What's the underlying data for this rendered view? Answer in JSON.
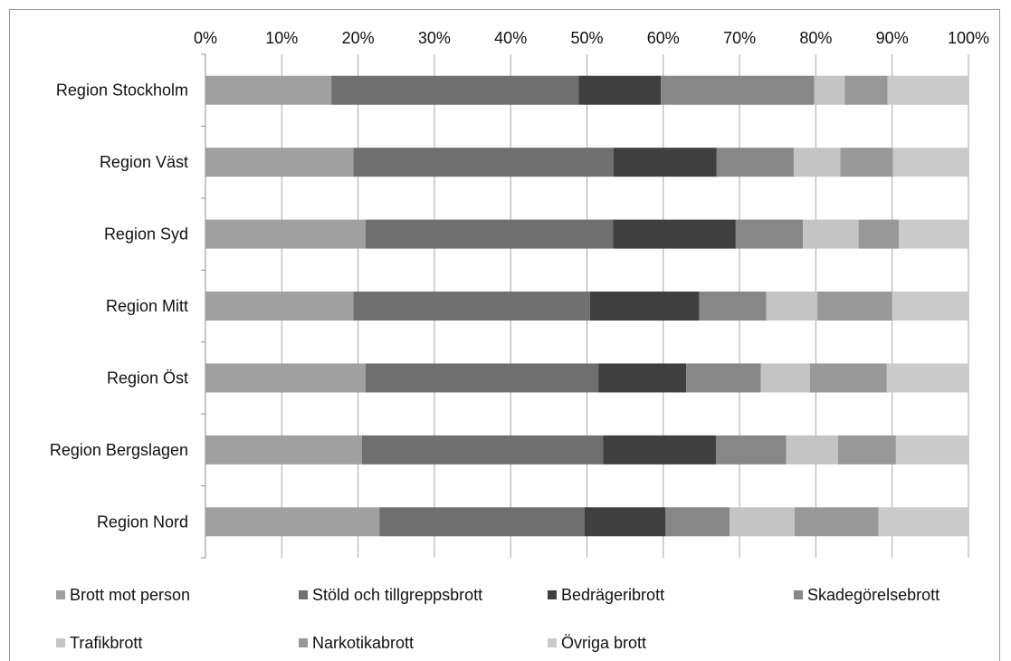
{
  "chart_data": {
    "type": "bar",
    "stacked": "percent",
    "orientation": "horizontal",
    "title": "",
    "xlabel": "",
    "ylabel": "",
    "xlim": [
      0,
      100
    ],
    "x_ticks": [
      "0%",
      "10%",
      "20%",
      "30%",
      "40%",
      "50%",
      "60%",
      "70%",
      "80%",
      "90%",
      "100%"
    ],
    "categories": [
      "Region Stockholm",
      "Region Väst",
      "Region Syd",
      "Region Mitt",
      "Region Öst",
      "Region Bergslagen",
      "Region Nord"
    ],
    "series": [
      {
        "name": "Brott mot person",
        "color": "#a0a0a0",
        "values": [
          16.5,
          19.4,
          21.0,
          19.4,
          21.0,
          20.5,
          22.8
        ]
      },
      {
        "name": "Stöld och tillgreppsbrott",
        "color": "#6f6f6f",
        "values": [
          32.4,
          34.1,
          32.4,
          31.0,
          30.5,
          31.6,
          26.9
        ]
      },
      {
        "name": "Bedrägeribrott",
        "color": "#3f3f3f",
        "values": [
          10.8,
          13.5,
          16.1,
          14.3,
          11.5,
          14.8,
          10.6
        ]
      },
      {
        "name": "Skadegörelsebrott",
        "color": "#878787",
        "values": [
          20.1,
          10.1,
          8.8,
          8.8,
          9.8,
          9.2,
          8.4
        ]
      },
      {
        "name": "Trafikbrott",
        "color": "#c4c4c4",
        "values": [
          4.0,
          6.1,
          7.3,
          6.7,
          6.4,
          6.8,
          8.5
        ]
      },
      {
        "name": "Narkotikabrott",
        "color": "#989898",
        "values": [
          5.6,
          6.9,
          5.3,
          9.8,
          10.1,
          7.6,
          11.0
        ]
      },
      {
        "name": "Övriga brott",
        "color": "#cacaca",
        "values": [
          10.6,
          9.9,
          9.1,
          10.0,
          10.7,
          9.5,
          11.8
        ]
      }
    ],
    "legend_position": "bottom",
    "grid": true
  }
}
